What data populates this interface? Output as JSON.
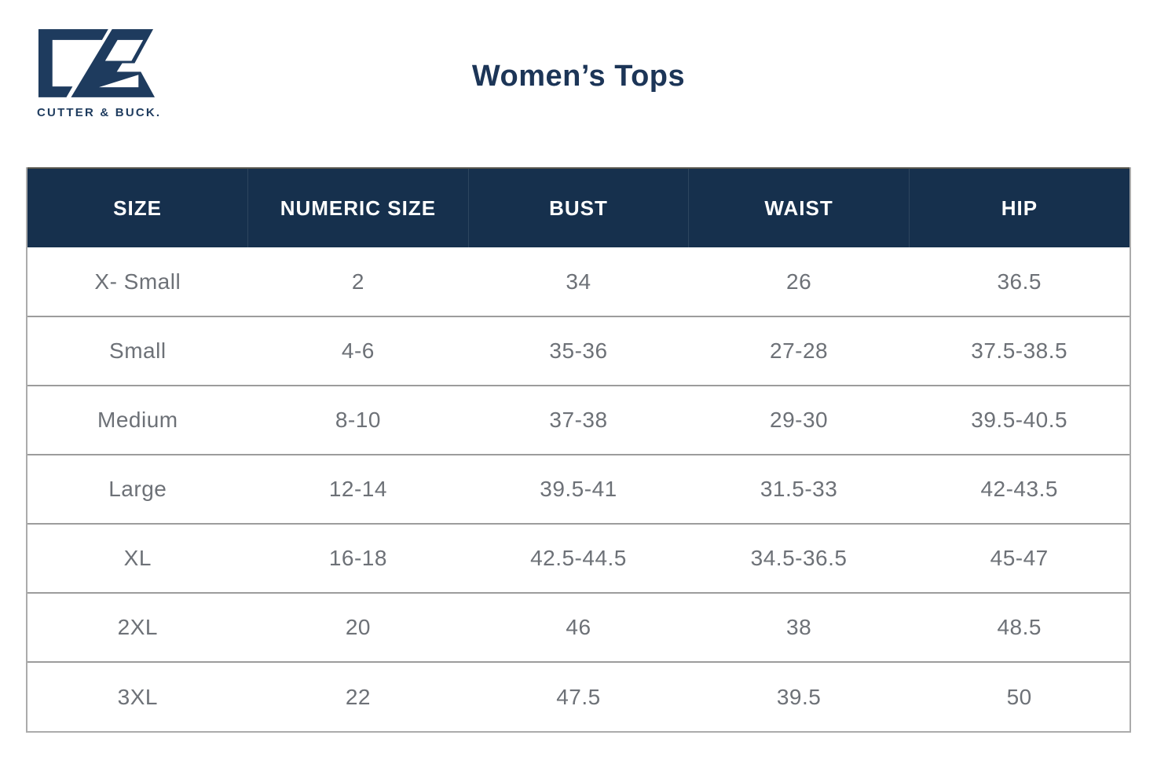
{
  "brand": {
    "wordmark": "CUTTER & BUCK.",
    "mark": "cutter-and-buck-cb-monogram"
  },
  "chart_data": {
    "type": "table",
    "title": "Women’s Tops",
    "columns": [
      "SIZE",
      "NUMERIC SIZE",
      "BUST",
      "WAIST",
      "HIP"
    ],
    "rows": [
      [
        "X- Small",
        "2",
        "34",
        "26",
        "36.5"
      ],
      [
        "Small",
        "4-6",
        "35-36",
        "27-28",
        "37.5-38.5"
      ],
      [
        "Medium",
        "8-10",
        "37-38",
        "29-30",
        "39.5-40.5"
      ],
      [
        "Large",
        "12-14",
        "39.5-41",
        "31.5-33",
        "42-43.5"
      ],
      [
        "XL",
        "16-18",
        "42.5-44.5",
        "34.5-36.5",
        "45-47"
      ],
      [
        "2XL",
        "20",
        "46",
        "38",
        "48.5"
      ],
      [
        "3XL",
        "22",
        "47.5",
        "39.5",
        "50"
      ]
    ],
    "layout": {
      "header_position": "top",
      "grid": "horizontal-lines",
      "units": "inches"
    }
  },
  "colors": {
    "header_navy": "#16304D",
    "logo_navy": "#1E3B5E",
    "title_navy": "#1C3557",
    "cell_text_gray": "#6D7177",
    "grid_line_gray": "#9C9C9C",
    "outer_border_gray": "#ABABAB",
    "header_text": "#FFFFFF"
  }
}
